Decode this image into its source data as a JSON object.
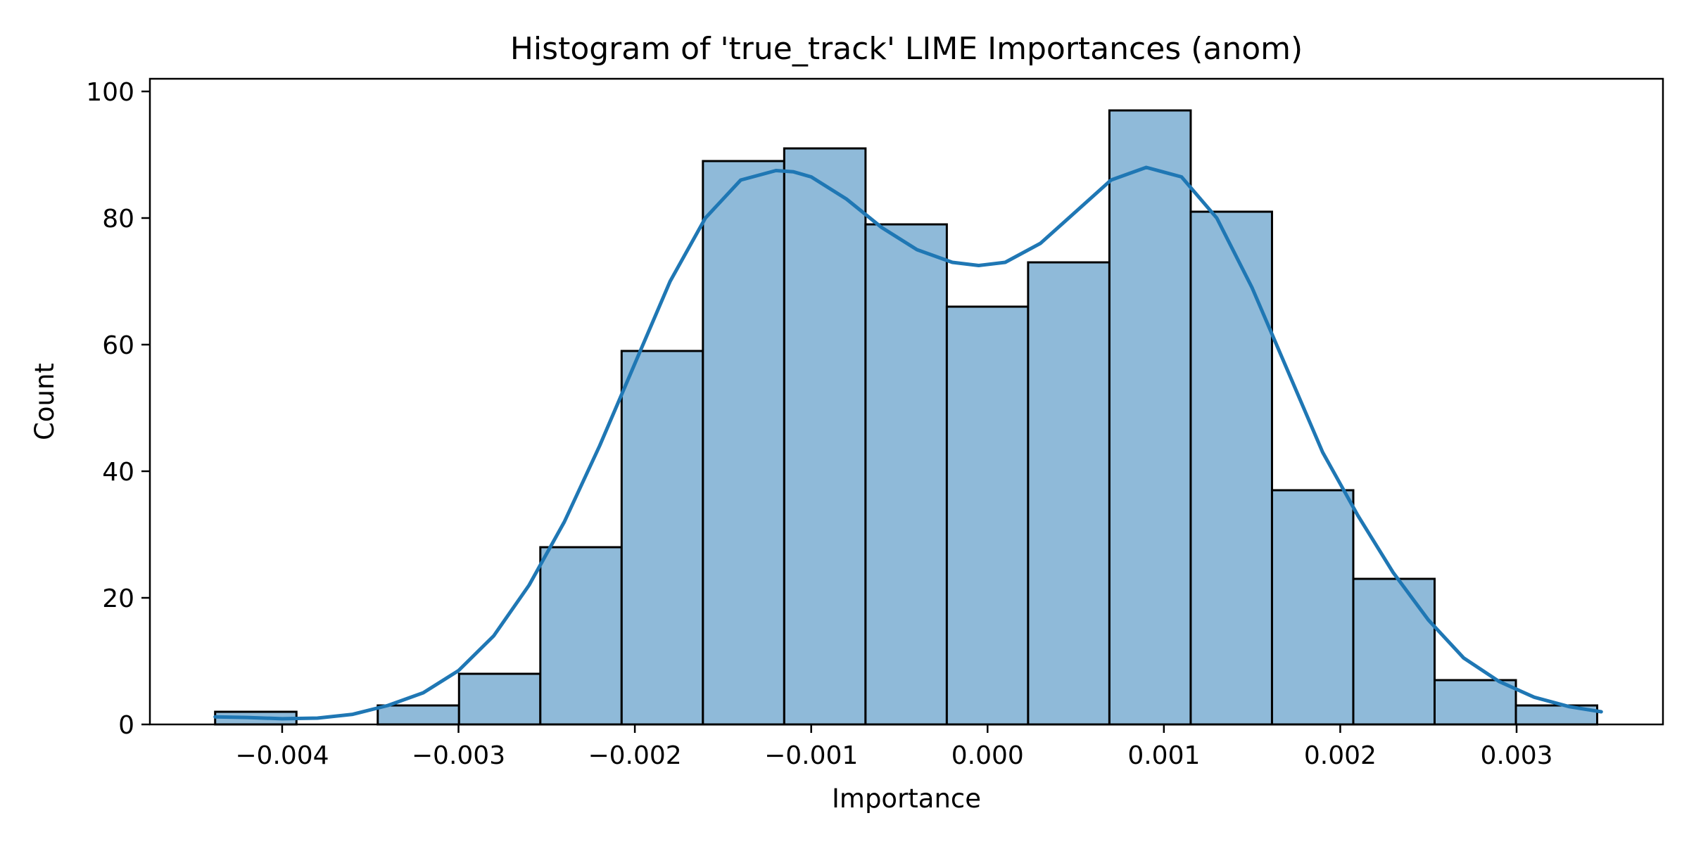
{
  "chart_data": {
    "type": "bar",
    "title": "Histogram of 'true_track' LIME Importances (anom)",
    "xlabel": "Importance",
    "ylabel": "Count",
    "xlim": [
      -0.00475,
      0.00383
    ],
    "ylim": [
      0,
      102
    ],
    "grid": false,
    "bar_color": "#8fbad9",
    "bar_edge_color": "#000000",
    "kde_color": "#1f77b4",
    "x_ticks": [
      -0.004,
      -0.003,
      -0.002,
      -0.001,
      0.0,
      0.001,
      0.002,
      0.003
    ],
    "x_tick_labels": [
      "−0.004",
      "−0.003",
      "−0.002",
      "−0.001",
      "0.000",
      "0.001",
      "0.002",
      "0.003"
    ],
    "y_ticks": [
      0,
      20,
      40,
      60,
      80,
      100
    ],
    "y_tick_labels": [
      "0",
      "20",
      "40",
      "60",
      "80",
      "100"
    ],
    "bin_start": -0.00438,
    "bin_width": 0.000461,
    "counts": [
      2,
      0,
      3,
      8,
      28,
      59,
      89,
      91,
      79,
      66,
      73,
      97,
      81,
      37,
      23,
      7,
      3
    ],
    "kde": {
      "x": [
        -0.00438,
        -0.0042,
        -0.004,
        -0.0038,
        -0.0036,
        -0.0034,
        -0.0032,
        -0.003,
        -0.0028,
        -0.0026,
        -0.0024,
        -0.0022,
        -0.002,
        -0.0018,
        -0.0016,
        -0.0014,
        -0.0012,
        -0.0011,
        -0.001,
        -0.0008,
        -0.0006,
        -0.0004,
        -0.0002,
        -5e-05,
        0.0001,
        0.0003,
        0.0005,
        0.0007,
        0.0009,
        0.0011,
        0.0013,
        0.0015,
        0.0017,
        0.0019,
        0.0021,
        0.0023,
        0.0025,
        0.0027,
        0.0029,
        0.0031,
        0.0033,
        0.00348
      ],
      "y": [
        1.2,
        1.1,
        0.9,
        1.0,
        1.6,
        3.0,
        5.0,
        8.5,
        14,
        22,
        32,
        44,
        57,
        70,
        80,
        86,
        87.5,
        87.3,
        86.5,
        83,
        78.5,
        75,
        73,
        72.5,
        73,
        76,
        81,
        86,
        88,
        86.5,
        80,
        69,
        56,
        43,
        33,
        24,
        16.5,
        10.5,
        6.8,
        4.3,
        2.8,
        2.0
      ]
    }
  }
}
